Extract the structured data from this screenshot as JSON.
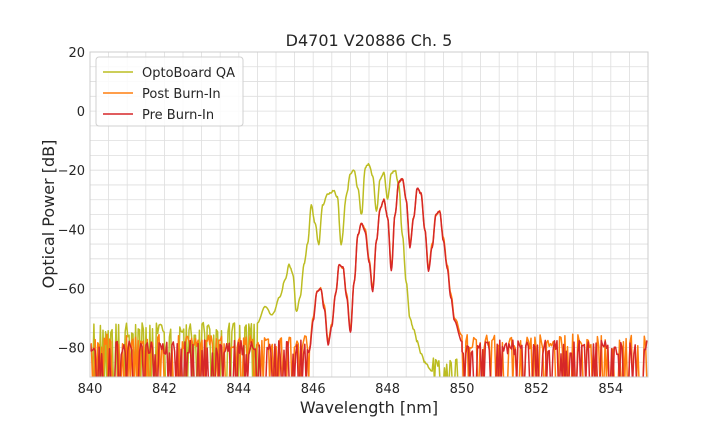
{
  "chart_data": {
    "type": "line",
    "title": "D4701 V20886 Ch. 5",
    "xlabel": "Wavelength [nm]",
    "ylabel": "Optical Power [dB]",
    "xlim": [
      840,
      855
    ],
    "ylim": [
      -90,
      20
    ],
    "xticks": [
      840,
      842,
      844,
      846,
      848,
      850,
      852,
      854
    ],
    "yticks": [
      -80,
      -60,
      -40,
      -20,
      0,
      20
    ],
    "xtick_labels": [
      "840",
      "842",
      "844",
      "846",
      "848",
      "850",
      "852",
      "854"
    ],
    "ytick_labels": [
      "−80",
      "−60",
      "−40",
      "−20",
      "0",
      "20"
    ],
    "grid": true,
    "legend_position": "top-left",
    "series": [
      {
        "name": "OptoBoard QA",
        "color": "#bcbd22",
        "noise_floor": -74,
        "noise_range": [
          840,
          844.9
        ],
        "noise_tail": [
          849.2,
          850.0
        ],
        "x": [
          844.5,
          844.7,
          844.9,
          845.1,
          845.25,
          845.35,
          845.45,
          845.55,
          845.65,
          845.75,
          845.85,
          845.95,
          846.05,
          846.15,
          846.25,
          846.4,
          846.55,
          846.65,
          846.75,
          846.9,
          847.0,
          847.1,
          847.2,
          847.3,
          847.4,
          847.5,
          847.6,
          847.7,
          847.8,
          847.9,
          848.0,
          848.1,
          848.2,
          848.3,
          848.4,
          848.5,
          848.6,
          848.7,
          848.8,
          848.9,
          849.0,
          849.2
        ],
        "y": [
          -72,
          -66,
          -69,
          -63,
          -57,
          -52,
          -55,
          -68,
          -63,
          -52,
          -45,
          -32,
          -38,
          -45,
          -32,
          -28,
          -27,
          -29,
          -45,
          -28,
          -21,
          -20,
          -26,
          -35,
          -19,
          -18,
          -22,
          -34,
          -23,
          -21,
          -30,
          -21,
          -20,
          -25,
          -42,
          -58,
          -70,
          -74,
          -78,
          -82,
          -85,
          -88
        ]
      },
      {
        "name": "Post Burn-In",
        "color": "#ff7f0e",
        "noise_floor": -78,
        "noise_range": [
          840,
          855
        ],
        "x": [
          845.9,
          846.0,
          846.1,
          846.2,
          846.3,
          846.4,
          846.5,
          846.6,
          846.7,
          846.8,
          846.9,
          847.0,
          847.1,
          847.2,
          847.3,
          847.4,
          847.5,
          847.6,
          847.7,
          847.8,
          847.9,
          848.0,
          848.1,
          848.2,
          848.3,
          848.4,
          848.5,
          848.6,
          848.7,
          848.8,
          848.9,
          849.0,
          849.1,
          849.2,
          849.3,
          849.4,
          849.5,
          849.6,
          849.7,
          849.8,
          850.0
        ],
        "y": [
          -80,
          -70,
          -61,
          -60,
          -66,
          -78,
          -72,
          -62,
          -52,
          -53,
          -62,
          -74,
          -58,
          -42,
          -38,
          -40,
          -50,
          -60,
          -44,
          -33,
          -30,
          -36,
          -53,
          -35,
          -24,
          -23,
          -30,
          -45,
          -36,
          -26,
          -28,
          -40,
          -53,
          -45,
          -35,
          -34,
          -43,
          -52,
          -62,
          -70,
          -76
        ]
      },
      {
        "name": "Pre Burn-In",
        "color": "#d62728",
        "noise_floor": -80,
        "noise_range": [
          840,
          855
        ],
        "x": [
          845.9,
          846.0,
          846.1,
          846.2,
          846.3,
          846.4,
          846.5,
          846.6,
          846.7,
          846.8,
          846.9,
          847.0,
          847.1,
          847.2,
          847.3,
          847.4,
          847.5,
          847.6,
          847.7,
          847.8,
          847.9,
          848.0,
          848.1,
          848.2,
          848.3,
          848.4,
          848.5,
          848.6,
          848.7,
          848.8,
          848.9,
          849.0,
          849.1,
          849.2,
          849.3,
          849.4,
          849.5,
          849.6,
          849.7,
          849.8,
          850.0
        ],
        "y": [
          -81,
          -71,
          -61,
          -60,
          -67,
          -79,
          -73,
          -62,
          -52,
          -53,
          -63,
          -75,
          -58,
          -42,
          -38,
          -41,
          -51,
          -61,
          -44,
          -33,
          -30,
          -36,
          -54,
          -35,
          -24,
          -23,
          -30,
          -46,
          -36,
          -26,
          -28,
          -40,
          -54,
          -46,
          -35,
          -34,
          -44,
          -53,
          -63,
          -71,
          -78
        ]
      }
    ]
  }
}
